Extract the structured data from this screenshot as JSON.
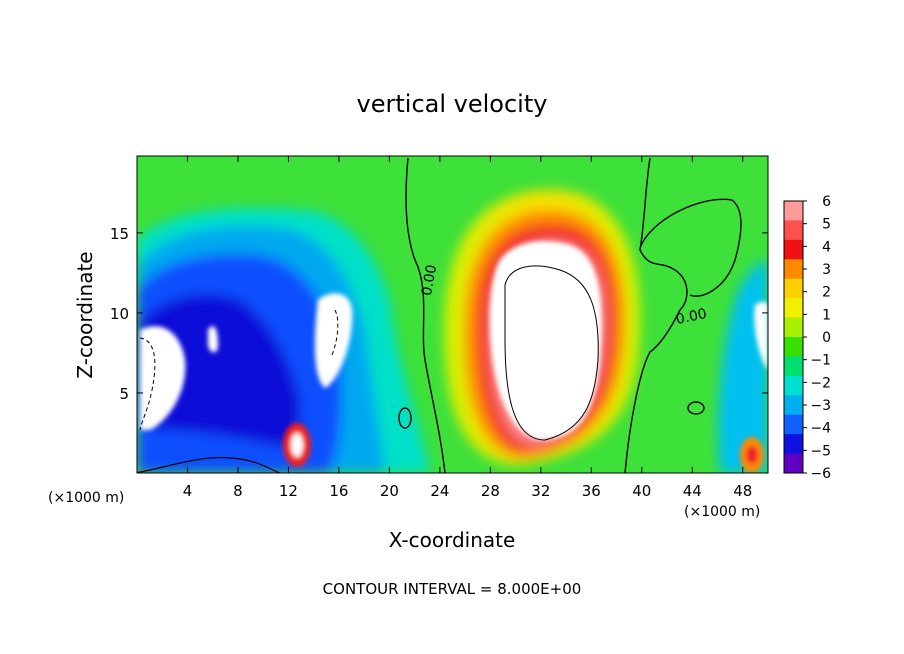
{
  "chart_data": {
    "type": "heatmap",
    "title": "vertical velocity",
    "xlabel": "X-coordinate",
    "ylabel": "Z-coordinate",
    "x_unit_left": "(×1000 m)",
    "x_unit_right": "(×1000 m)",
    "footer": "CONTOUR INTERVAL = 8.000E+00",
    "xlim": [
      0,
      50
    ],
    "ylim": [
      0,
      19.8
    ],
    "x_ticks": [
      4,
      8,
      12,
      16,
      20,
      24,
      28,
      32,
      36,
      40,
      44,
      48
    ],
    "y_ticks": [
      5,
      10,
      15
    ],
    "colorbar": {
      "levels": [
        6,
        5,
        4,
        3,
        2,
        1,
        0,
        -1,
        -2,
        -3,
        -4,
        -5,
        -6
      ],
      "colors": [
        "#ff9a9a",
        "#ff5050",
        "#f01010",
        "#ff8a00",
        "#ffd000",
        "#f0f000",
        "#a8f000",
        "#38e000",
        "#00e070",
        "#00e0d0",
        "#00b0f0",
        "#1060ff",
        "#1010e0",
        "#6000c0"
      ]
    },
    "contour_labels": [
      {
        "text": "0.00",
        "x": 23.5,
        "y": 12.0,
        "rotation": -80
      },
      {
        "text": "0.00",
        "x": 44.0,
        "y": 9.5,
        "rotation": -12
      }
    ]
  }
}
